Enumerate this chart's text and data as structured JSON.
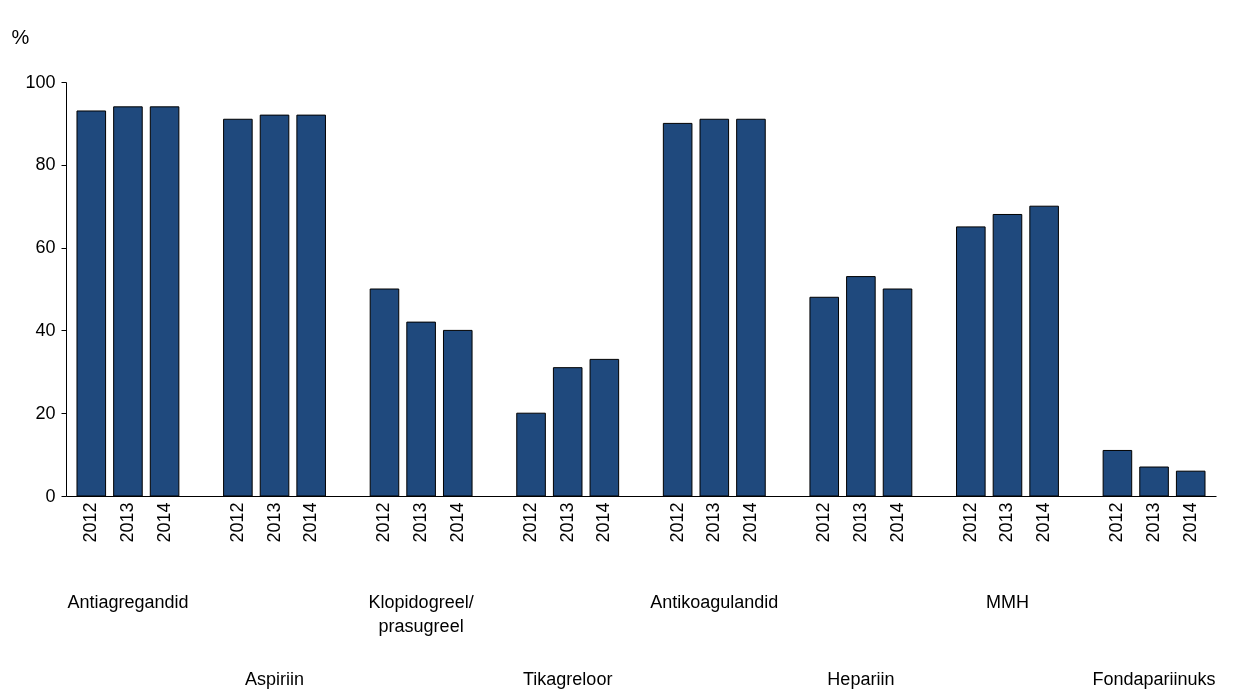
{
  "chart_data": {
    "type": "bar",
    "ylabel": "%",
    "categories": [
      "2012",
      "2013",
      "2014",
      "2012",
      "2013",
      "2014",
      "2012",
      "2013",
      "2014",
      "2012",
      "2013",
      "2014",
      "2012",
      "2013",
      "2014",
      "2012",
      "2013",
      "2014",
      "2012",
      "2013",
      "2014",
      "2012",
      "2013",
      "2014"
    ],
    "values": [
      93,
      94,
      94,
      91,
      92,
      92,
      50,
      42,
      40,
      20,
      31,
      33,
      90,
      91,
      91,
      48,
      53,
      50,
      65,
      68,
      70,
      11,
      7,
      6
    ],
    "color": "#1f497d",
    "ylim": [
      0,
      100
    ],
    "yticks": [
      0,
      20,
      40,
      60,
      80,
      100
    ],
    "grid": false,
    "annotations": [
      "Antiagregandid",
      "Aspiriin",
      "Klopidogreel/\nprasugreel",
      "Tikagreloor",
      "Antikoagulandid",
      "Hepariin",
      "MMH",
      "Fondapariinuks"
    ]
  }
}
